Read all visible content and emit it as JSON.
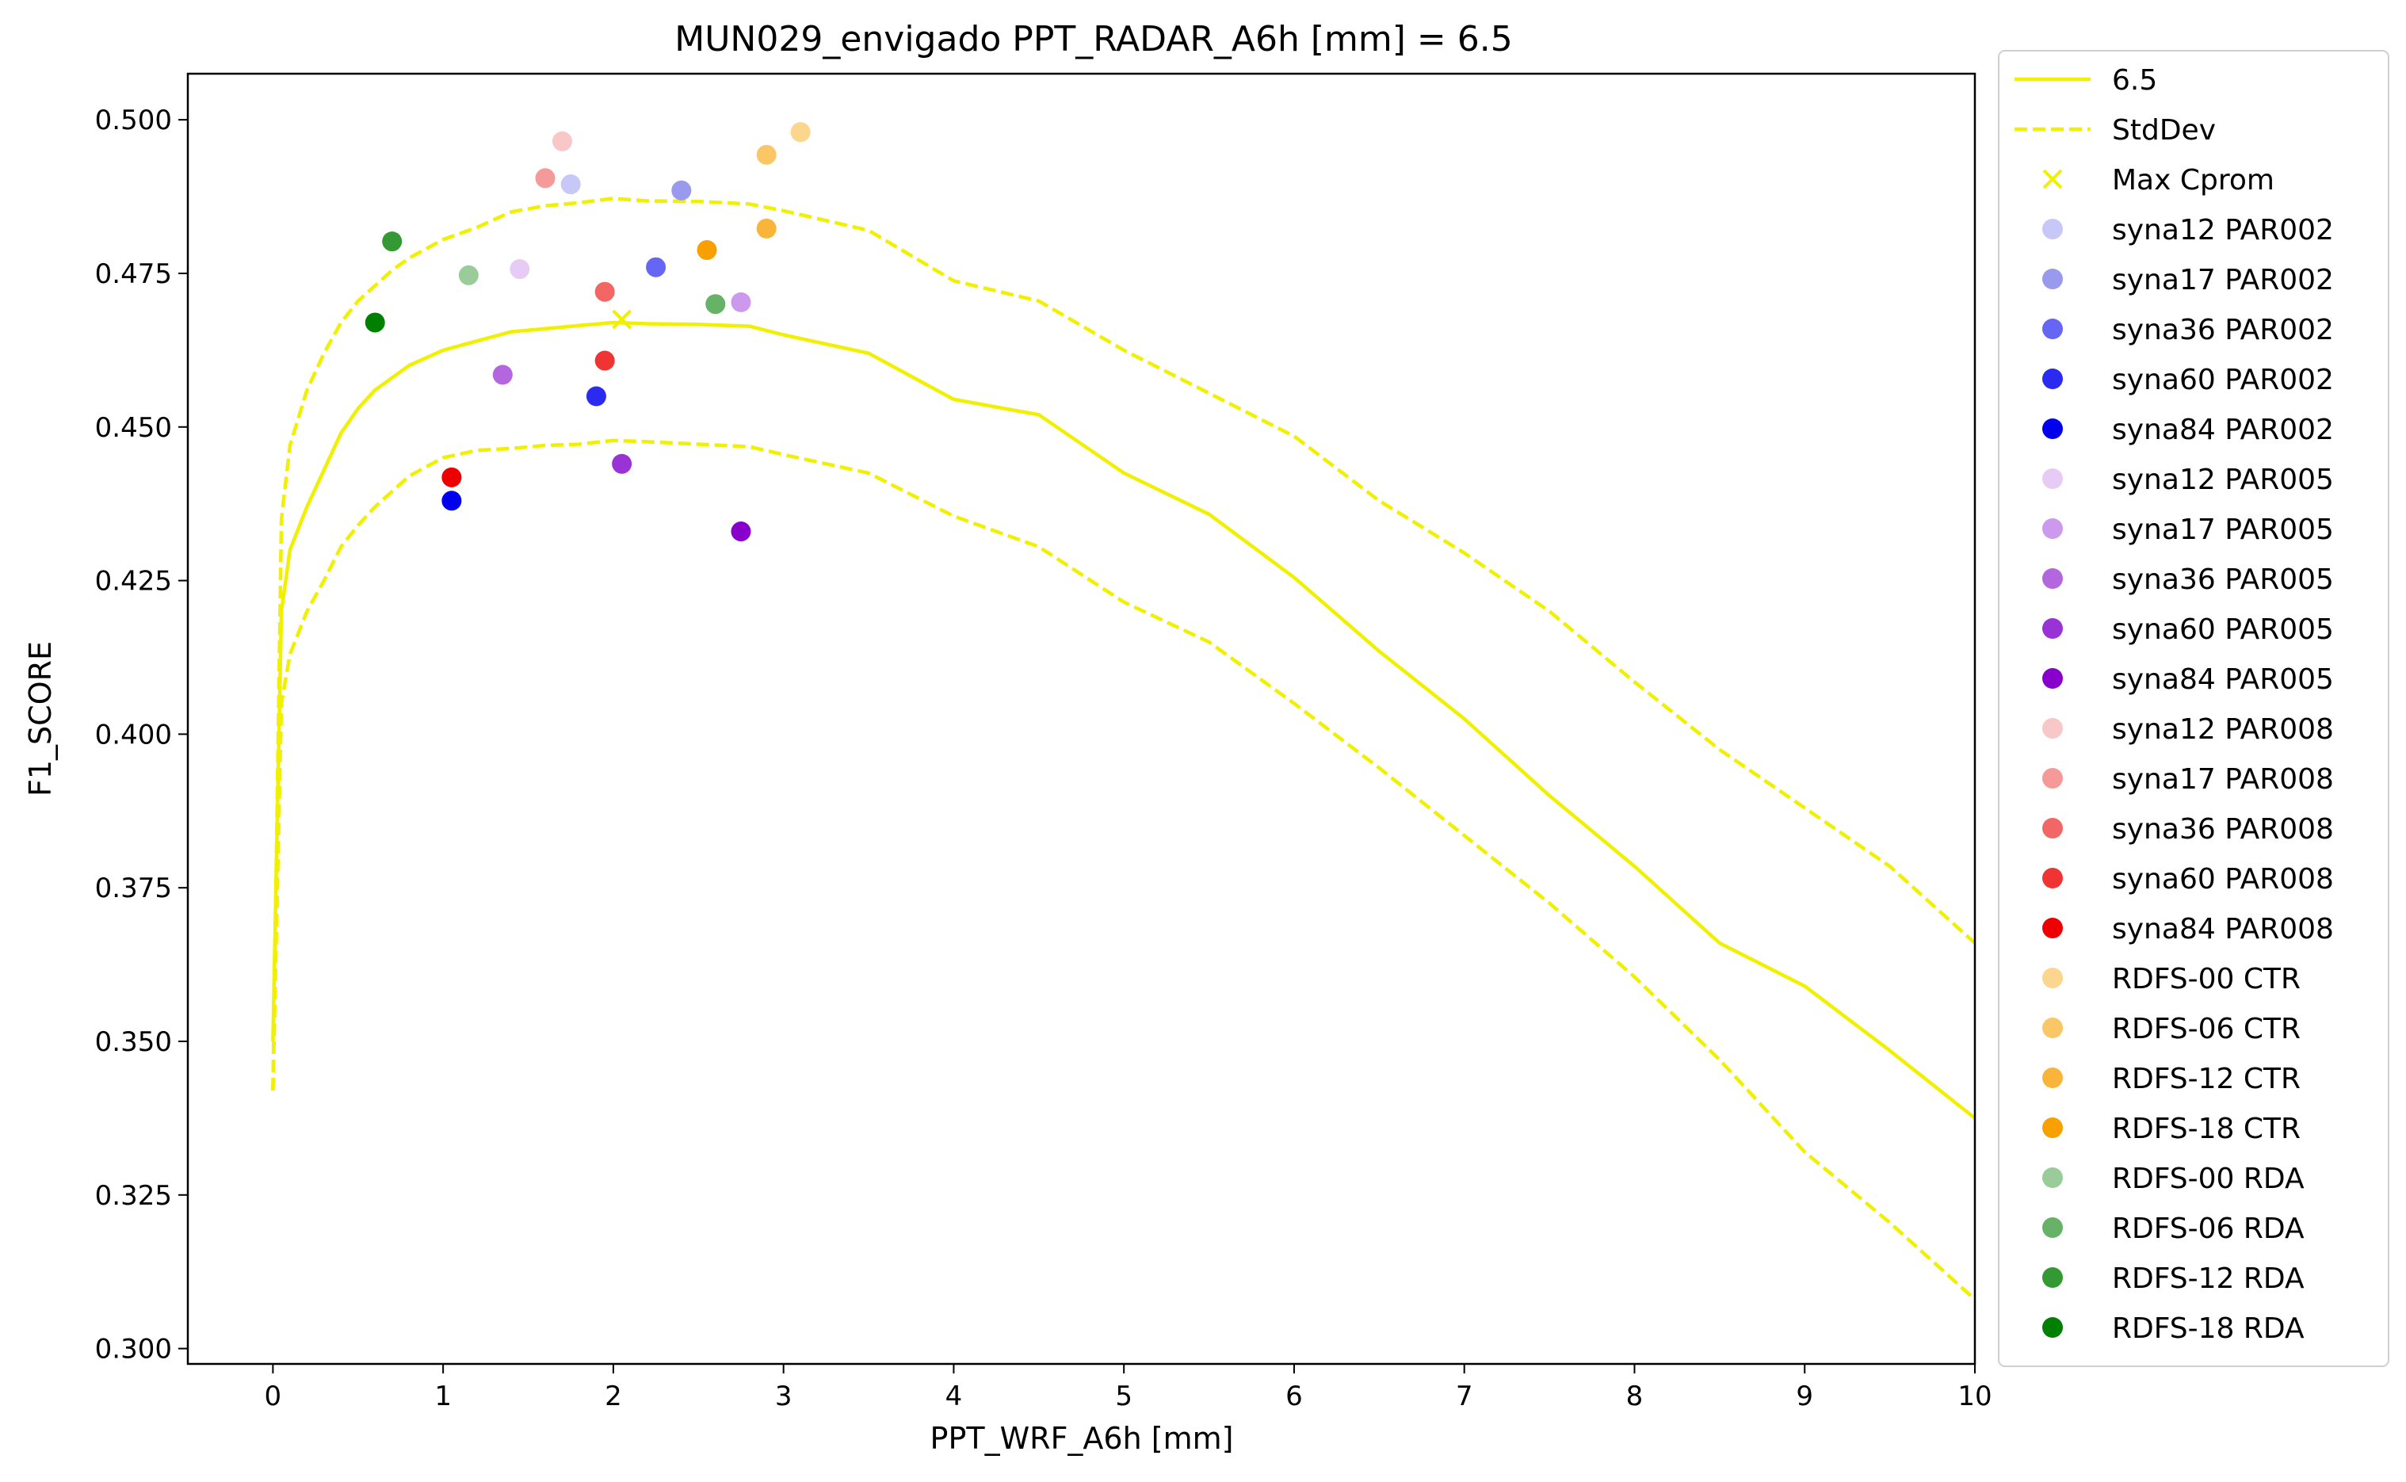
{
  "chart_data": {
    "type": "scatter",
    "title": "MUN029_envigado    PPT_RADAR_A6h [mm] = 6.5",
    "xlabel": "PPT_WRF_A6h [mm]",
    "ylabel": "F1_SCORE",
    "xlim": [
      -0.5,
      10
    ],
    "ylim": [
      0.2975,
      0.5075
    ],
    "xticks": [
      0,
      1,
      2,
      3,
      4,
      5,
      6,
      7,
      8,
      9,
      10
    ],
    "xtick_labels": [
      "0",
      "1",
      "2",
      "3",
      "4",
      "5",
      "6",
      "7",
      "8",
      "9",
      "10"
    ],
    "yticks": [
      0.3,
      0.325,
      0.35,
      0.375,
      0.4,
      0.425,
      0.45,
      0.475,
      0.5
    ],
    "ytick_labels": [
      "0.300",
      "0.325",
      "0.350",
      "0.375",
      "0.400",
      "0.425",
      "0.450",
      "0.475",
      "0.500"
    ],
    "grid": false,
    "legend_position": "outside-right",
    "x_curve": [
      0,
      0.05,
      0.1,
      0.2,
      0.3,
      0.4,
      0.5,
      0.6,
      0.7,
      0.8,
      1.0,
      1.2,
      1.4,
      1.6,
      1.8,
      2.0,
      2.2,
      2.5,
      2.8,
      3.0,
      3.5,
      4.0,
      4.5,
      5.0,
      5.5,
      6.0,
      6.5,
      7.0,
      7.5,
      8.0,
      8.5,
      9.0,
      9.5,
      10.0
    ],
    "lines": [
      {
        "name": "6.5",
        "style": "solid",
        "color": "#f0f000",
        "y": [
          0.35,
          0.42,
          0.43,
          0.437,
          0.443,
          0.449,
          0.453,
          0.456,
          0.458,
          0.46,
          0.4625,
          0.464,
          0.4655,
          0.466,
          0.4665,
          0.467,
          0.4668,
          0.4667,
          0.4664,
          0.465,
          0.462,
          0.4545,
          0.452,
          0.4425,
          0.4358,
          0.4255,
          0.4135,
          0.4025,
          0.39,
          0.3785,
          0.366,
          0.359,
          0.3485,
          0.3375
        ]
      },
      {
        "name": "StdDev",
        "style": "dashed",
        "color": "#f0f000",
        "y": [
          0.342,
          0.435,
          0.447,
          0.456,
          0.462,
          0.467,
          0.4705,
          0.473,
          0.4755,
          0.4775,
          0.4805,
          0.4825,
          0.485,
          0.486,
          0.4865,
          0.4872,
          0.4868,
          0.4867,
          0.4863,
          0.4852,
          0.482,
          0.4738,
          0.4705,
          0.4625,
          0.4555,
          0.4485,
          0.438,
          0.4295,
          0.42,
          0.4085,
          0.3975,
          0.388,
          0.3785,
          0.366
        ]
      },
      {
        "name": "StdDev-lower",
        "style": "dashed",
        "color": "#f0f000",
        "in_legend": false,
        "y": [
          0.342,
          0.405,
          0.413,
          0.42,
          0.425,
          0.4305,
          0.434,
          0.437,
          0.4395,
          0.442,
          0.445,
          0.4462,
          0.4465,
          0.447,
          0.4472,
          0.4478,
          0.4476,
          0.4472,
          0.4468,
          0.4455,
          0.4425,
          0.4355,
          0.4305,
          0.4215,
          0.415,
          0.405,
          0.3945,
          0.3835,
          0.3725,
          0.3605,
          0.347,
          0.332,
          0.3205,
          0.308
        ]
      }
    ],
    "max_point": {
      "name": "Max Cprom",
      "x": 2.05,
      "y": 0.4675,
      "color": "#f0f000",
      "marker": "x"
    },
    "series": [
      {
        "name": "syna12 PAR002",
        "color": "#c8c8f8",
        "x": 1.75,
        "y": 0.4895
      },
      {
        "name": "syna17 PAR002",
        "color": "#9999ee",
        "x": 2.4,
        "y": 0.4885
      },
      {
        "name": "syna36 PAR002",
        "color": "#6666f5",
        "x": 2.25,
        "y": 0.476
      },
      {
        "name": "syna60 PAR002",
        "color": "#2a2af0",
        "x": 1.9,
        "y": 0.455
      },
      {
        "name": "syna84 PAR002",
        "color": "#0000ee",
        "x": 1.05,
        "y": 0.438
      },
      {
        "name": "syna12 PAR005",
        "color": "#e6ccf5",
        "x": 1.45,
        "y": 0.4757
      },
      {
        "name": "syna17 PAR005",
        "color": "#cc99ee",
        "x": 2.75,
        "y": 0.4703
      },
      {
        "name": "syna36 PAR005",
        "color": "#b366dd",
        "x": 1.35,
        "y": 0.4585
      },
      {
        "name": "syna60 PAR005",
        "color": "#9a33d5",
        "x": 2.05,
        "y": 0.444
      },
      {
        "name": "syna84 PAR005",
        "color": "#8800cc",
        "x": 2.75,
        "y": 0.433
      },
      {
        "name": "syna12 PAR008",
        "color": "#f8c8c8",
        "x": 1.7,
        "y": 0.4965
      },
      {
        "name": "syna17 PAR008",
        "color": "#f59999",
        "x": 1.6,
        "y": 0.4905
      },
      {
        "name": "syna36 PAR008",
        "color": "#f26666",
        "x": 1.95,
        "y": 0.472
      },
      {
        "name": "syna60 PAR008",
        "color": "#f03333",
        "x": 1.95,
        "y": 0.4608
      },
      {
        "name": "syna84 PAR008",
        "color": "#ee0000",
        "x": 1.05,
        "y": 0.4418
      },
      {
        "name": "RDFS-00 CTR",
        "color": "#fcd68c",
        "x": 3.1,
        "y": 0.498
      },
      {
        "name": "RDFS-06 CTR",
        "color": "#fbc766",
        "x": 2.9,
        "y": 0.4943
      },
      {
        "name": "RDFS-12 CTR",
        "color": "#f9b53a",
        "x": 2.9,
        "y": 0.4823
      },
      {
        "name": "RDFS-18 CTR",
        "color": "#f7a000",
        "x": 2.55,
        "y": 0.4788
      },
      {
        "name": "RDFS-00 RDA",
        "color": "#99cc99",
        "x": 1.15,
        "y": 0.4747
      },
      {
        "name": "RDFS-06 RDA",
        "color": "#66b266",
        "x": 2.6,
        "y": 0.47
      },
      {
        "name": "RDFS-12 RDA",
        "color": "#339933",
        "x": 0.7,
        "y": 0.4802
      },
      {
        "name": "RDFS-18 RDA",
        "color": "#008000",
        "x": 0.6,
        "y": 0.467
      }
    ]
  }
}
